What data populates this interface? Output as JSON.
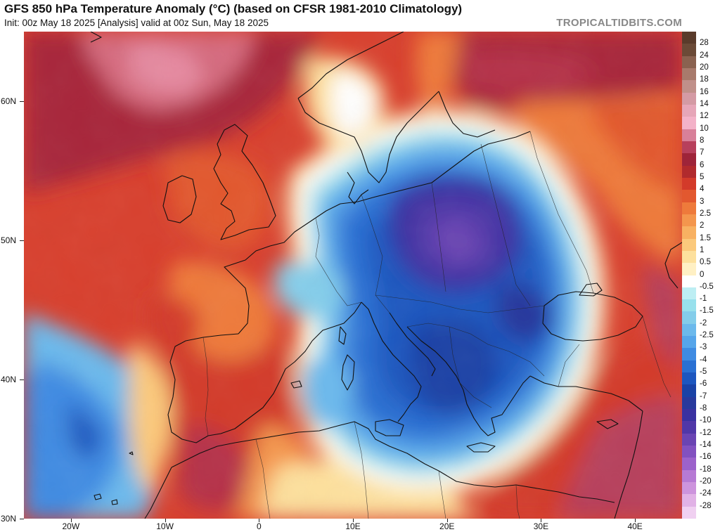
{
  "title": "GFS 850 hPa Temperature Anomaly (°C) (based on CFSR 1981-2010 Climatology)",
  "subtitle": "Init: 00z May 18 2025   [Analysis]   valid at 00z Sun, May 18 2025",
  "brand": "TROPICALTIDBITS.COM",
  "map": {
    "lon_range": [
      -25,
      45
    ],
    "lat_range": [
      30,
      65
    ],
    "lat_labels": [
      {
        "v": 60,
        "t": "60N"
      },
      {
        "v": 50,
        "t": "50N"
      },
      {
        "v": 40,
        "t": "40N"
      },
      {
        "v": 30,
        "t": "30N"
      }
    ],
    "lon_labels": [
      {
        "v": -20,
        "t": "20W"
      },
      {
        "v": -10,
        "t": "10W"
      },
      {
        "v": 0,
        "t": "0"
      },
      {
        "v": 10,
        "t": "10E"
      },
      {
        "v": 20,
        "t": "20E"
      },
      {
        "v": 30,
        "t": "30E"
      },
      {
        "v": 40,
        "t": "40E"
      }
    ]
  },
  "colorbar": {
    "labels": [
      "28",
      "24",
      "20",
      "18",
      "16",
      "14",
      "12",
      "10",
      "8",
      "7",
      "6",
      "5",
      "4",
      "3",
      "2.5",
      "2",
      "1.5",
      "1",
      "0.5",
      "0",
      "-0.5",
      "-1",
      "-1.5",
      "-2",
      "-2.5",
      "-3",
      "-4",
      "-5",
      "-6",
      "-7",
      "-8",
      "-10",
      "-12",
      "-14",
      "-16",
      "-18",
      "-20",
      "-24",
      "-28"
    ],
    "colors": [
      "#6b4a37",
      "#8a6250",
      "#a87a6c",
      "#c0908a",
      "#d49aa4",
      "#e6a6b8",
      "#f3b2c8",
      "#d88099",
      "#b7405c",
      "#9e2439",
      "#b12a2d",
      "#d33a2a",
      "#e2582f",
      "#ee7a3b",
      "#f4964d",
      "#f8b162",
      "#fbc97c",
      "#fde09d",
      "#fff0c4",
      "#ffffff",
      "#bdeef3",
      "#98e0ec",
      "#84cdea",
      "#6cb9ec",
      "#56a5ea",
      "#3f8be2",
      "#2a70d3",
      "#1d56bf",
      "#1a42a6",
      "#28399d",
      "#3a31a1",
      "#5037a8",
      "#6a44b3",
      "#8251c0",
      "#9c62cb",
      "#b67ad4",
      "#cd94dd",
      "#e1b2e6",
      "#f0d0f1"
    ]
  },
  "anomaly_areas": [
    {
      "name": "atlantic-warm",
      "value": 5
    },
    {
      "name": "central-europe-cold",
      "value": -6
    },
    {
      "name": "poland-core",
      "value": -8
    },
    {
      "name": "azores-cold",
      "value": -2.5
    },
    {
      "name": "turkey-warm",
      "value": 6
    }
  ]
}
